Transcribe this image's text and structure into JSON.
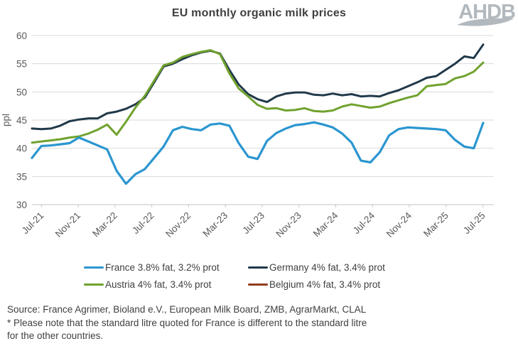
{
  "title": "EU monthly organic milk prices",
  "logo_text": "AHDB",
  "source": {
    "line1": "Source: France Agrimer, Bioland e.V., European Milk Board, ZMB, AgrarMarkt, CLAL",
    "line2": "* Please note that the standard litre quoted for France is different to the standard litre",
    "line3": "for the other countries."
  },
  "chart_data": {
    "type": "line",
    "title": "EU monthly organic milk prices",
    "xlabel": "",
    "ylabel": "ppl",
    "ylim": [
      30,
      60
    ],
    "y_ticks": [
      30,
      35,
      40,
      45,
      50,
      55,
      60
    ],
    "grid": "horizontal",
    "legend_position": "bottom",
    "x_tick_labels": [
      "Jul-21",
      "Nov-21",
      "Mar-22",
      "Jul-22",
      "Nov-22",
      "Mar-23",
      "Jul-23",
      "Nov-23",
      "Mar-24",
      "Jul-24",
      "Nov-24",
      "Mar-25",
      "Jul-25"
    ],
    "x": [
      "Jul-21",
      "Aug-21",
      "Sep-21",
      "Oct-21",
      "Nov-21",
      "Dec-21",
      "Jan-22",
      "Feb-22",
      "Mar-22",
      "Apr-22",
      "May-22",
      "Jun-22",
      "Jul-22",
      "Aug-22",
      "Sep-22",
      "Oct-22",
      "Nov-22",
      "Dec-22",
      "Jan-23",
      "Feb-23",
      "Mar-23",
      "Apr-23",
      "May-23",
      "Jun-23",
      "Jul-23",
      "Aug-23",
      "Sep-23",
      "Oct-23",
      "Nov-23",
      "Dec-23",
      "Jan-24",
      "Feb-24",
      "Mar-24",
      "Apr-24",
      "May-24",
      "Jun-24",
      "Jul-24",
      "Aug-24",
      "Sep-24",
      "Oct-24",
      "Nov-24",
      "Dec-24",
      "Jan-25",
      "Feb-25",
      "Mar-25",
      "Apr-25",
      "May-25",
      "Jun-25",
      "Jul-25"
    ],
    "series": [
      {
        "name": "France 3.8% fat, 3.2% prot",
        "color": "#2b96d0",
        "values": [
          38.3,
          40.4,
          40.5,
          40.7,
          40.9,
          41.9,
          41.2,
          40.5,
          39.8,
          36.0,
          33.7,
          35.4,
          36.3,
          38.3,
          40.3,
          43.2,
          43.8,
          43.4,
          43.2,
          44.2,
          44.4,
          44.0,
          40.9,
          38.5,
          38.1,
          41.3,
          42.7,
          43.5,
          44.1,
          44.3,
          44.6,
          44.2,
          43.7,
          42.6,
          41.0,
          37.8,
          37.5,
          39.3,
          42.3,
          43.4,
          43.7,
          43.6,
          43.5,
          43.4,
          43.2,
          41.5,
          40.3,
          40.0,
          44.5
        ]
      },
      {
        "name": "Germany 4% fat, 3.4% prot",
        "color": "#21394a",
        "values": [
          43.5,
          43.4,
          43.5,
          44.0,
          44.8,
          45.1,
          45.3,
          45.3,
          46.2,
          46.5,
          47.0,
          47.8,
          49.0,
          51.7,
          54.5,
          55.0,
          55.8,
          56.5,
          57.0,
          57.3,
          56.8,
          53.9,
          51.3,
          49.6,
          48.7,
          48.2,
          49.2,
          49.7,
          49.9,
          49.9,
          49.5,
          49.4,
          49.7,
          49.4,
          49.6,
          49.2,
          49.3,
          49.2,
          49.8,
          50.3,
          51.0,
          51.7,
          52.5,
          52.8,
          53.9,
          55.0,
          56.3,
          56.0,
          58.4
        ]
      },
      {
        "name": "Austria 4% fat, 3.4% prot",
        "color": "#70a22e",
        "values": [
          41.0,
          41.2,
          41.4,
          41.6,
          41.9,
          42.1,
          42.6,
          43.3,
          44.2,
          42.4,
          44.7,
          47.2,
          49.3,
          52.0,
          54.7,
          55.2,
          56.2,
          56.7,
          57.1,
          57.4,
          56.7,
          53.3,
          50.6,
          49.2,
          47.7,
          47.0,
          47.1,
          46.7,
          46.8,
          47.1,
          46.6,
          46.5,
          46.7,
          47.4,
          47.8,
          47.5,
          47.2,
          47.4,
          48.0,
          48.5,
          49.0,
          49.4,
          51.0,
          51.2,
          51.4,
          52.4,
          52.8,
          53.6,
          55.2
        ]
      },
      {
        "name": "Belgium 4% fat, 3.4% prot",
        "color": "#8f3b1e",
        "values": [],
        "note": "legend entry only; no line visible in chart"
      }
    ]
  }
}
